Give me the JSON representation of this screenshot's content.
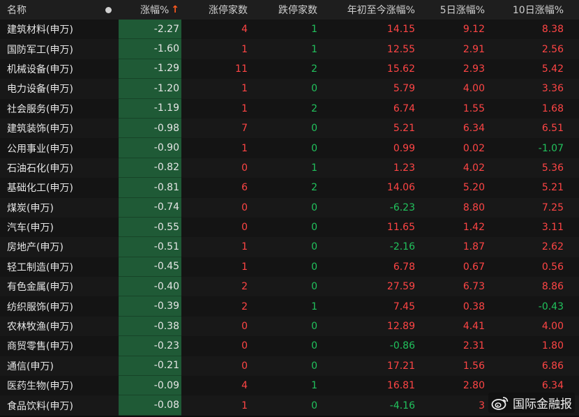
{
  "header": {
    "name": "名称",
    "change": "涨幅%",
    "change_arrow": "↑",
    "limit_up": "涨停家数",
    "limit_down": "跌停家数",
    "ytd": "年初至今涨幅%",
    "d5": "5日涨幅%",
    "d10": "10日涨幅%"
  },
  "rows": [
    {
      "name": "建筑材料(申万)",
      "change": "-2.27",
      "up": "4",
      "down": "1",
      "ytd": "14.15",
      "d5": "9.12",
      "d10": "8.38"
    },
    {
      "name": "国防军工(申万)",
      "change": "-1.60",
      "up": "1",
      "down": "1",
      "ytd": "12.55",
      "d5": "2.91",
      "d10": "2.56"
    },
    {
      "name": "机械设备(申万)",
      "change": "-1.29",
      "up": "11",
      "down": "2",
      "ytd": "15.62",
      "d5": "2.93",
      "d10": "5.42"
    },
    {
      "name": "电力设备(申万)",
      "change": "-1.20",
      "up": "1",
      "down": "0",
      "ytd": "5.79",
      "d5": "4.00",
      "d10": "3.36"
    },
    {
      "name": "社会服务(申万)",
      "change": "-1.19",
      "up": "1",
      "down": "2",
      "ytd": "6.74",
      "d5": "1.55",
      "d10": "1.68"
    },
    {
      "name": "建筑装饰(申万)",
      "change": "-0.98",
      "up": "7",
      "down": "0",
      "ytd": "5.21",
      "d5": "6.34",
      "d10": "6.51"
    },
    {
      "name": "公用事业(申万)",
      "change": "-0.90",
      "up": "1",
      "down": "0",
      "ytd": "0.99",
      "d5": "0.02",
      "d10": "-1.07"
    },
    {
      "name": "石油石化(申万)",
      "change": "-0.82",
      "up": "0",
      "down": "1",
      "ytd": "1.23",
      "d5": "4.02",
      "d10": "5.36"
    },
    {
      "name": "基础化工(申万)",
      "change": "-0.81",
      "up": "6",
      "down": "2",
      "ytd": "14.06",
      "d5": "5.20",
      "d10": "5.21"
    },
    {
      "name": "煤炭(申万)",
      "change": "-0.74",
      "up": "0",
      "down": "0",
      "ytd": "-6.23",
      "d5": "8.80",
      "d10": "7.25"
    },
    {
      "name": "汽车(申万)",
      "change": "-0.55",
      "up": "0",
      "down": "0",
      "ytd": "11.65",
      "d5": "1.42",
      "d10": "3.11"
    },
    {
      "name": "房地产(申万)",
      "change": "-0.51",
      "up": "1",
      "down": "0",
      "ytd": "-2.16",
      "d5": "1.87",
      "d10": "2.62"
    },
    {
      "name": "轻工制造(申万)",
      "change": "-0.45",
      "up": "1",
      "down": "0",
      "ytd": "6.78",
      "d5": "0.67",
      "d10": "0.56"
    },
    {
      "name": "有色金属(申万)",
      "change": "-0.40",
      "up": "2",
      "down": "0",
      "ytd": "27.59",
      "d5": "6.73",
      "d10": "8.86"
    },
    {
      "name": "纺织服饰(申万)",
      "change": "-0.39",
      "up": "2",
      "down": "1",
      "ytd": "7.45",
      "d5": "0.38",
      "d10": "-0.43"
    },
    {
      "name": "农林牧渔(申万)",
      "change": "-0.38",
      "up": "0",
      "down": "0",
      "ytd": "12.89",
      "d5": "4.41",
      "d10": "4.00"
    },
    {
      "name": "商贸零售(申万)",
      "change": "-0.23",
      "up": "0",
      "down": "0",
      "ytd": "-0.86",
      "d5": "2.31",
      "d10": "1.80"
    },
    {
      "name": "通信(申万)",
      "change": "-0.21",
      "up": "0",
      "down": "0",
      "ytd": "17.21",
      "d5": "1.56",
      "d10": "6.86"
    },
    {
      "name": "医药生物(申万)",
      "change": "-0.09",
      "up": "4",
      "down": "1",
      "ytd": "16.81",
      "d5": "2.80",
      "d10": "6.34"
    },
    {
      "name": "食品饮料(申万)",
      "change": "-0.08",
      "up": "1",
      "down": "0",
      "ytd": "-4.16",
      "d5": "3",
      "d10": ""
    }
  ],
  "colors": {
    "up": "#ff4545",
    "down": "#21c25d",
    "change_cell": "#1f5a36"
  },
  "watermark": {
    "icon": "weibo-icon",
    "text": "国际金融报"
  }
}
